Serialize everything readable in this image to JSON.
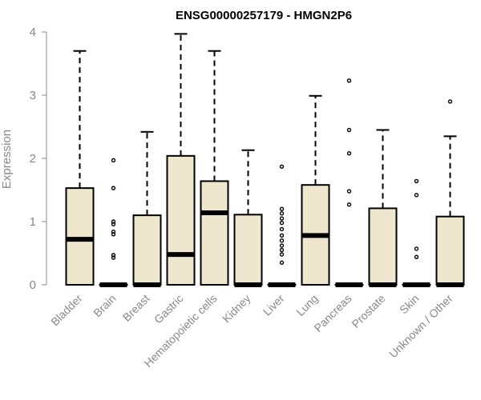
{
  "chart_data": {
    "type": "boxplot",
    "title": "ENSG00000257179 - HMGN2P6",
    "ylabel": "Expression",
    "xlabel": "",
    "ylim": [
      0,
      4
    ],
    "yticks": [
      0,
      1,
      2,
      3,
      4
    ],
    "box_fill": "#EEE7CE",
    "categories": [
      "Bladder",
      "Brain",
      "Breast",
      "Gastric",
      "Hematopoietic cells",
      "Kidney",
      "Liver",
      "Lung",
      "Pancreas",
      "Prostate",
      "Skin",
      "Unknown / Other"
    ],
    "boxes": [
      {
        "q1": 0,
        "median": 0.72,
        "q3": 1.53,
        "whisker_low": 0,
        "whisker_high": 3.7,
        "outliers": []
      },
      {
        "q1": 0,
        "median": 0,
        "q3": 0,
        "whisker_low": 0,
        "whisker_high": 0,
        "outliers": [
          1.97,
          1.53,
          1.0,
          0.96,
          0.84,
          0.8,
          0.47,
          0.43
        ]
      },
      {
        "q1": 0,
        "median": 0,
        "q3": 1.1,
        "whisker_low": 0,
        "whisker_high": 2.42,
        "outliers": []
      },
      {
        "q1": 0,
        "median": 0.48,
        "q3": 2.04,
        "whisker_low": 0,
        "whisker_high": 3.97,
        "outliers": []
      },
      {
        "q1": 0,
        "median": 1.14,
        "q3": 1.64,
        "whisker_low": 0,
        "whisker_high": 3.7,
        "outliers": []
      },
      {
        "q1": 0,
        "median": 0,
        "q3": 1.11,
        "whisker_low": 0,
        "whisker_high": 2.13,
        "outliers": []
      },
      {
        "q1": 0,
        "median": 0,
        "q3": 0,
        "whisker_low": 0,
        "whisker_high": 0,
        "outliers": [
          1.87,
          1.2,
          1.13,
          1.05,
          0.98,
          0.88,
          0.78,
          0.7,
          0.62,
          0.55,
          0.48,
          0.35
        ]
      },
      {
        "q1": 0,
        "median": 0.78,
        "q3": 1.58,
        "whisker_low": 0,
        "whisker_high": 2.99,
        "outliers": []
      },
      {
        "q1": 0,
        "median": 0,
        "q3": 0,
        "whisker_low": 0,
        "whisker_high": 0,
        "outliers": [
          3.23,
          2.45,
          2.08,
          1.48,
          1.27
        ]
      },
      {
        "q1": 0,
        "median": 0,
        "q3": 1.21,
        "whisker_low": 0,
        "whisker_high": 2.45,
        "outliers": []
      },
      {
        "q1": 0,
        "median": 0,
        "q3": 0,
        "whisker_low": 0,
        "whisker_high": 0,
        "outliers": [
          1.64,
          1.42,
          0.57,
          0.44
        ]
      },
      {
        "q1": 0,
        "median": 0,
        "q3": 1.08,
        "whisker_low": 0,
        "whisker_high": 2.35,
        "outliers": [
          2.9
        ]
      }
    ]
  }
}
